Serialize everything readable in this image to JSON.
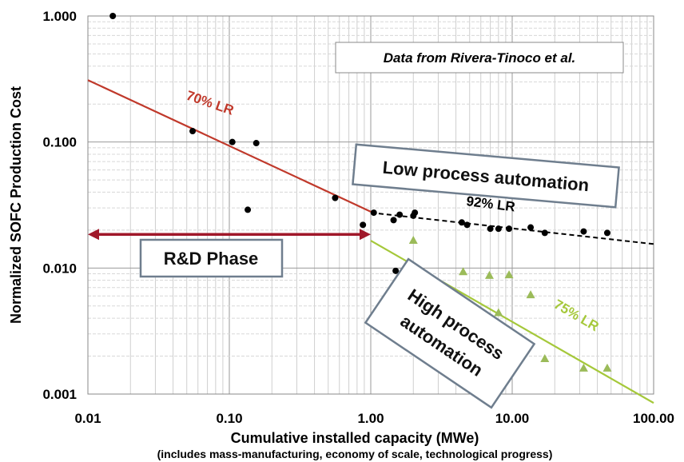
{
  "chart_data": {
    "type": "scatter",
    "title": "",
    "xlabel": "Cumulative installed capacity (MWe)",
    "xlabel_sub": "(includes mass-manufacturing, economy of scale, technological progress)",
    "ylabel": "Normalized SOFC Production Cost",
    "xscale": "log",
    "yscale": "log",
    "xlim": [
      0.01,
      100
    ],
    "ylim": [
      0.001,
      1
    ],
    "grid": true,
    "x_ticks": [
      "0.01",
      "0.10",
      "1.00",
      "10.00",
      "100.00"
    ],
    "y_ticks": [
      "1.000",
      "0.100",
      "0.010",
      "0.001"
    ],
    "series": [
      {
        "color": "#000000",
        "marker": "circle",
        "points": [
          [
            0.015,
            1.0
          ],
          [
            0.055,
            0.122
          ],
          [
            0.105,
            0.1
          ],
          [
            0.155,
            0.098
          ],
          [
            0.135,
            0.029
          ],
          [
            0.56,
            0.036
          ],
          [
            0.88,
            0.022
          ],
          [
            1.05,
            0.0275
          ],
          [
            1.45,
            0.024
          ],
          [
            1.6,
            0.0265
          ],
          [
            2.0,
            0.026
          ],
          [
            2.05,
            0.0275
          ],
          [
            4.4,
            0.023
          ],
          [
            4.8,
            0.022
          ],
          [
            7.0,
            0.0205
          ],
          [
            8.0,
            0.0205
          ],
          [
            9.5,
            0.0205
          ],
          [
            13.5,
            0.021
          ],
          [
            17.0,
            0.019
          ],
          [
            32.0,
            0.0195
          ],
          [
            47.0,
            0.019
          ],
          [
            1.5,
            0.0095
          ]
        ]
      },
      {
        "color": "#9bbb59",
        "marker": "triangle",
        "points": [
          [
            2.0,
            0.0165
          ],
          [
            4.5,
            0.0093
          ],
          [
            6.9,
            0.0087
          ],
          [
            9.5,
            0.0088
          ],
          [
            8.0,
            0.0044
          ],
          [
            13.5,
            0.0061
          ],
          [
            17.0,
            0.0019
          ],
          [
            32.0,
            0.0016
          ],
          [
            47.0,
            0.0016
          ]
        ]
      }
    ],
    "trend_lines": [
      {
        "label": "70% LR",
        "color": "#c0392b",
        "style": "solid",
        "from": [
          0.01,
          0.31
        ],
        "to": [
          1.0,
          0.028
        ]
      },
      {
        "label": "92% LR",
        "color": "#000000",
        "style": "dashed",
        "from": [
          1.0,
          0.0275
        ],
        "to": [
          100.0,
          0.0155
        ]
      },
      {
        "label": "75% LR",
        "color": "#a5c83a",
        "style": "solid",
        "from": [
          1.0,
          0.0165
        ],
        "to": [
          100.0,
          0.00085
        ]
      }
    ],
    "annotations": {
      "source_note": "Data from Rivera-Tinoco  et al.",
      "low_automation": "Low process automation",
      "high_automation": [
        "High process",
        "automation"
      ],
      "rd_phase": "R&D Phase",
      "rd_phase_range": [
        0.01,
        1.0
      ],
      "rd_phase_level": 0.0185,
      "rd_arrow_color": "#a0182a",
      "box_border_color": "#6f7e8e"
    }
  }
}
